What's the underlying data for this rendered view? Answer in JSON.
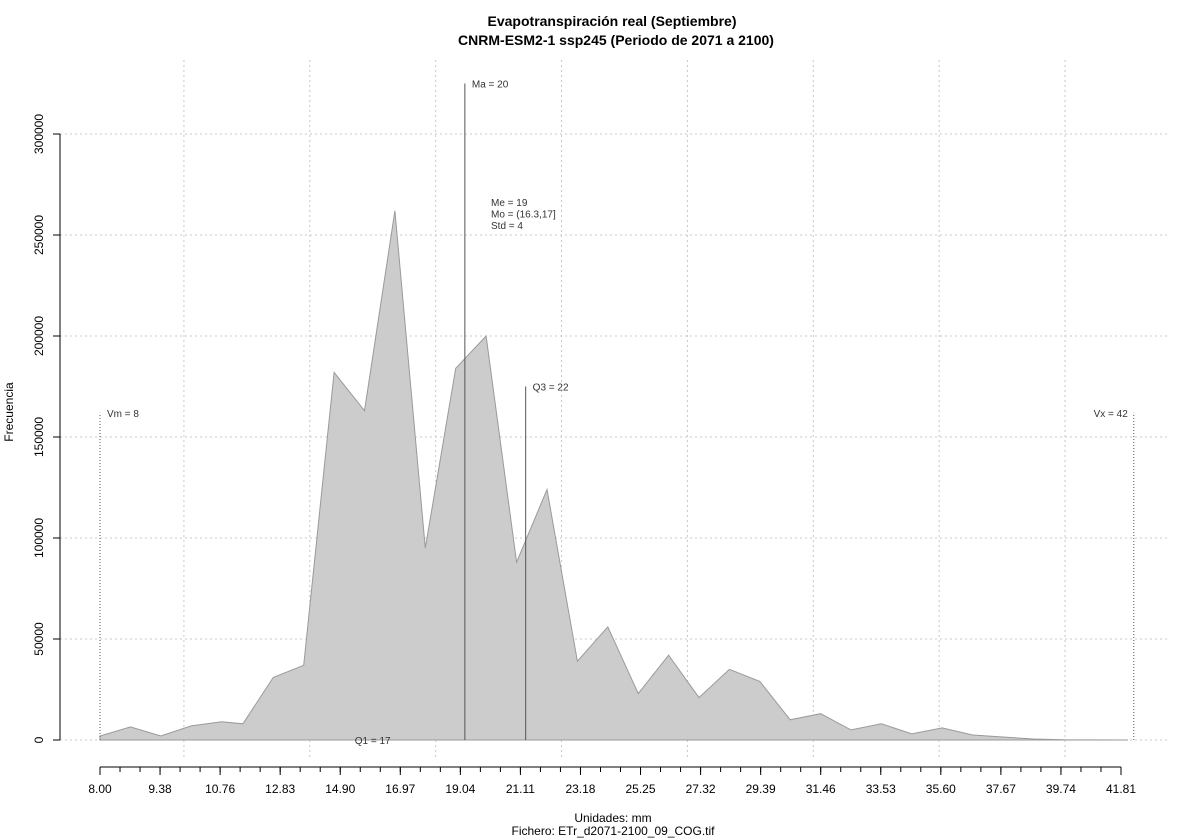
{
  "chart_data": {
    "type": "area",
    "title": "Evapotranspiración real (Septiembre)",
    "subtitle": "CNRM-ESM2-1 ssp245 (Periodo de 2071 a 2100)",
    "xlabel": "Unidades: mm",
    "file_label": "Fichero: ETr_d2071-2100_09_COG.tif",
    "ylabel": "Frecuencia",
    "xlim": [
      8.0,
      41.81
    ],
    "ylim": [
      0,
      300000
    ],
    "x_ticks": [
      8.0,
      9.38,
      10.76,
      12.83,
      14.9,
      16.97,
      19.04,
      21.11,
      23.18,
      25.25,
      27.32,
      29.39,
      31.46,
      33.53,
      35.6,
      37.67,
      39.74,
      41.81
    ],
    "x_tick_labels": [
      "8.00",
      "9.38",
      "10.76",
      "12.83",
      "14.90",
      "16.97",
      "19.04",
      "21.11",
      "23.18",
      "25.25",
      "27.32",
      "29.39",
      "31.46",
      "33.53",
      "35.60",
      "37.67",
      "39.74",
      "41.81"
    ],
    "y_ticks": [
      0,
      50000,
      100000,
      150000,
      200000,
      250000,
      300000
    ],
    "y_tick_labels": [
      "0",
      "50000",
      "100000",
      "150000",
      "200000",
      "250000",
      "300000"
    ],
    "grid": true,
    "fill_color": "#cccccc",
    "stroke_color": "#9a9a9a",
    "points": [
      [
        8.0,
        2000
      ],
      [
        9.0,
        6500
      ],
      [
        10.0,
        2000
      ],
      [
        11.0,
        7000
      ],
      [
        12.0,
        9000
      ],
      [
        12.7,
        8000
      ],
      [
        13.7,
        31000
      ],
      [
        14.7,
        37000
      ],
      [
        15.7,
        182000
      ],
      [
        16.7,
        163000
      ],
      [
        17.7,
        262000
      ],
      [
        18.7,
        95000
      ],
      [
        19.7,
        184000
      ],
      [
        20.7,
        200000
      ],
      [
        21.7,
        88000
      ],
      [
        22.7,
        124000
      ],
      [
        23.7,
        39000
      ],
      [
        24.7,
        56000
      ],
      [
        25.7,
        23000
      ],
      [
        26.7,
        42000
      ],
      [
        27.7,
        21000
      ],
      [
        28.7,
        35000
      ],
      [
        29.7,
        29000
      ],
      [
        30.7,
        10000
      ],
      [
        31.7,
        13000
      ],
      [
        32.7,
        5000
      ],
      [
        33.7,
        8000
      ],
      [
        34.7,
        3000
      ],
      [
        35.7,
        6000
      ],
      [
        36.7,
        2500
      ],
      [
        37.7,
        1500
      ],
      [
        38.7,
        500
      ],
      [
        39.7,
        100
      ],
      [
        40.7,
        50
      ],
      [
        41.81,
        0
      ]
    ],
    "annotations": [
      {
        "label": "Vm = 8",
        "x": 8.0,
        "y_top": 162000,
        "label_y": 162000
      },
      {
        "label": "Ma = 20",
        "x": 20.0,
        "y_top": 325000,
        "label_y": 325000
      },
      {
        "label": "Q3 = 22",
        "x": 22.0,
        "y_top": 175000,
        "label_y": 175000
      },
      {
        "label": "Vx = 42",
        "x": 42.0,
        "y_top": 162000,
        "label_y": 162000
      }
    ],
    "q1_label": "Q1 = 17",
    "q1_x": 17.0,
    "stats": [
      "Me = 19",
      "Mo = (16.3,17]",
      "Std = 4"
    ]
  }
}
